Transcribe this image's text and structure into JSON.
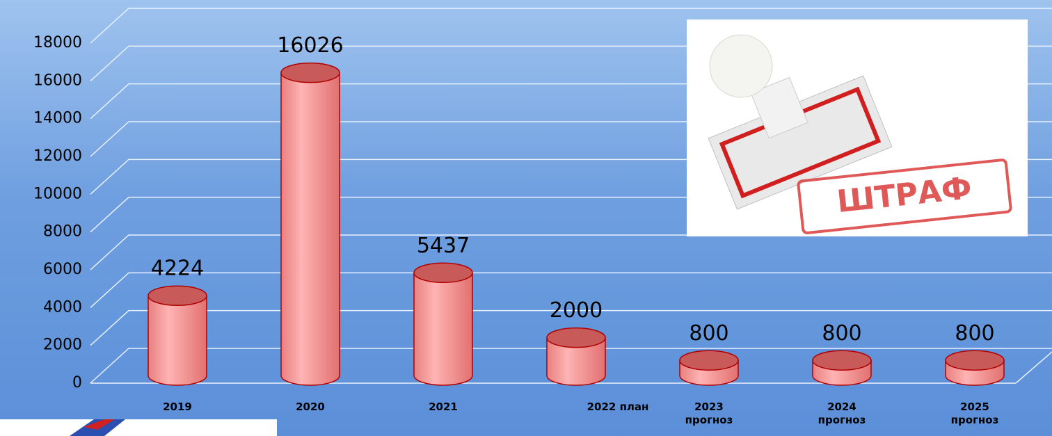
{
  "chart_data": {
    "type": "bar",
    "categories": [
      "2019",
      "2020",
      "2021",
      "2022 план",
      "2023 прогноз",
      "2024 прогноз",
      "2025 прогноз"
    ],
    "values": [
      4224,
      16026,
      5437,
      2000,
      800,
      800,
      800
    ],
    "color": "#ff9e9e",
    "ylim": [
      0,
      18000
    ],
    "yticks": [
      0,
      2000,
      4000,
      6000,
      8000,
      10000,
      12000,
      14000,
      16000,
      18000
    ],
    "grid": true
  },
  "inset": {
    "text": "ШТРАФ"
  }
}
